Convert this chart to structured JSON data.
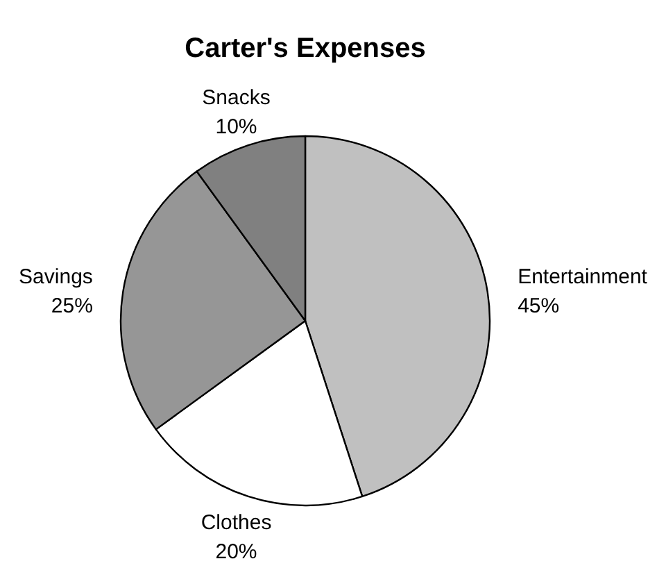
{
  "chart_data": {
    "type": "pie",
    "title": "Carter's Expenses",
    "categories": [
      "Entertainment",
      "Clothes",
      "Savings",
      "Snacks"
    ],
    "values": [
      45,
      20,
      25,
      10
    ],
    "colors": [
      "#c0c0c0",
      "#ffffff",
      "#969696",
      "#808080"
    ],
    "value_labels": [
      "45%",
      "20%",
      "25%",
      "10%"
    ]
  }
}
